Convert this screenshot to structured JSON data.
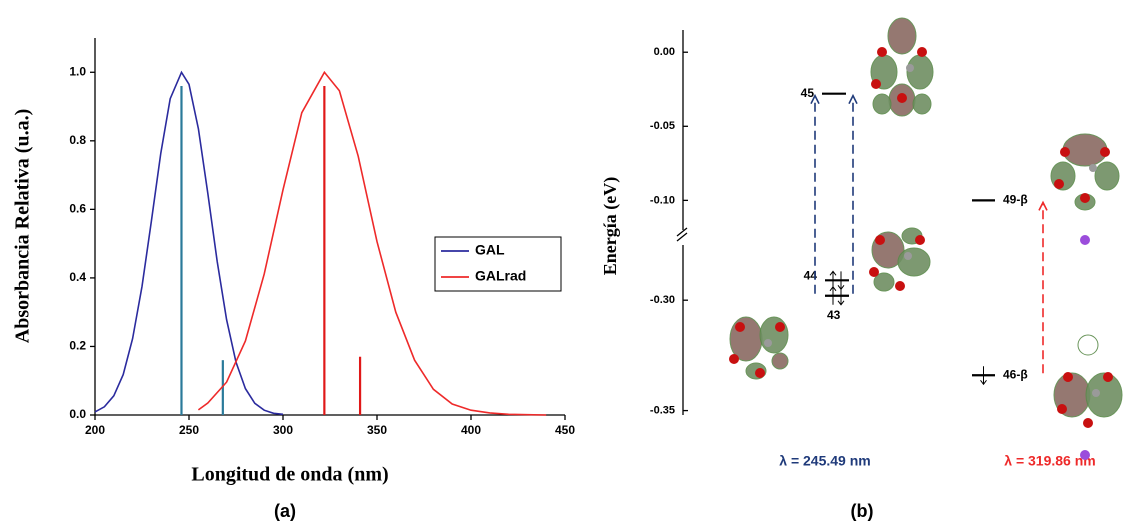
{
  "chart_data": [
    {
      "type": "line",
      "xlabel": "Longitud de onda (nm)",
      "ylabel": "Absorbancia Relativa (u.a.)",
      "caption": "(a)",
      "xlim": [
        200,
        450
      ],
      "xticks": [
        200,
        250,
        300,
        350,
        400,
        450
      ],
      "ylim": [
        0,
        1.1
      ],
      "yticks": [
        {
          "value": 0,
          "label": "0.0"
        },
        0.2,
        0.4,
        0.6,
        0.8,
        {
          "value": 1,
          "label": "1.0"
        }
      ],
      "legend": "right",
      "series": [
        {
          "name": "GAL",
          "color": "#2b2b9e",
          "x": [
            200,
            205,
            210,
            215,
            220,
            225,
            230,
            235,
            240,
            246,
            250,
            255,
            260,
            265,
            270,
            275,
            280,
            285,
            290,
            295,
            300
          ],
          "values": [
            0.009,
            0.024,
            0.056,
            0.118,
            0.223,
            0.375,
            0.566,
            0.764,
            0.923,
            1.0,
            0.965,
            0.835,
            0.647,
            0.448,
            0.278,
            0.154,
            0.077,
            0.034,
            0.014,
            0.005,
            0.002
          ],
          "sticks": {
            "color": "#2a7a9a",
            "x": [
              246,
              268
            ],
            "values": [
              0.96,
              0.16
            ]
          }
        },
        {
          "name": "GALrad",
          "color": "#ee2a2a",
          "x": [
            255,
            260,
            270,
            280,
            290,
            300,
            310,
            322,
            330,
            340,
            350,
            360,
            370,
            380,
            390,
            400,
            410,
            420,
            440
          ],
          "values": [
            0.015,
            0.035,
            0.096,
            0.216,
            0.411,
            0.657,
            0.882,
            1.0,
            0.946,
            0.755,
            0.506,
            0.3,
            0.16,
            0.075,
            0.032,
            0.014,
            0.006,
            0.002,
            0.0
          ],
          "sticks": {
            "color": "#e01818",
            "x": [
              322,
              341
            ],
            "values": [
              0.96,
              0.17
            ]
          }
        }
      ]
    },
    {
      "type": "energy-levels",
      "ylabel": "Energía (eV)",
      "caption": "(b)",
      "ylim": [
        [
          -0.352,
          -0.275
        ],
        [
          -0.12,
          0.015
        ]
      ],
      "yticks": [
        {
          "value": 0,
          "label": "0.00"
        },
        {
          "value": -0.05,
          "label": "-0.05"
        },
        {
          "value": -0.1,
          "label": "-0.10"
        },
        {
          "value": -0.3,
          "label": "-0.30"
        },
        {
          "value": -0.35,
          "label": "-0.35"
        }
      ],
      "systems": [
        {
          "transition_label": "λ = 245.49 nm",
          "color": "#1f3a7a",
          "levels": [
            {
              "label": "45",
              "energy": -0.028,
              "electrons": 0
            },
            {
              "label": "44",
              "energy": -0.291,
              "electrons": 2
            },
            {
              "label": "43",
              "energy": -0.298,
              "electrons": 2
            }
          ]
        },
        {
          "transition_label": "λ = 319.86 nm",
          "color": "#ee2a2a",
          "levels": [
            {
              "label": "49-β",
              "energy": -0.1,
              "electrons": 0
            },
            {
              "label": "46-β",
              "energy": -0.334,
              "electrons": 1
            }
          ]
        }
      ]
    }
  ]
}
